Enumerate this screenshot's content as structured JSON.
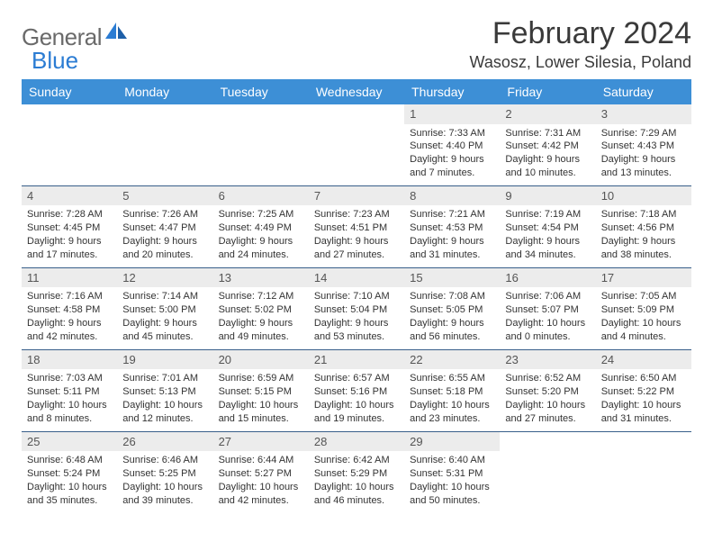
{
  "logo": {
    "text1": "General",
    "text2": "Blue"
  },
  "title": "February 2024",
  "location": "Wasosz, Lower Silesia, Poland",
  "colors": {
    "header_bg": "#3d8fd6",
    "header_text": "#ffffff",
    "row_border": "#385f8a",
    "daynum_bg": "#ececec",
    "logo_gray": "#6a6a6a",
    "logo_blue": "#2b7cd3"
  },
  "weekdays": [
    "Sunday",
    "Monday",
    "Tuesday",
    "Wednesday",
    "Thursday",
    "Friday",
    "Saturday"
  ],
  "weeks": [
    [
      null,
      null,
      null,
      null,
      {
        "n": "1",
        "sunrise": "7:33 AM",
        "sunset": "4:40 PM",
        "daylight": "9 hours and 7 minutes."
      },
      {
        "n": "2",
        "sunrise": "7:31 AM",
        "sunset": "4:42 PM",
        "daylight": "9 hours and 10 minutes."
      },
      {
        "n": "3",
        "sunrise": "7:29 AM",
        "sunset": "4:43 PM",
        "daylight": "9 hours and 13 minutes."
      }
    ],
    [
      {
        "n": "4",
        "sunrise": "7:28 AM",
        "sunset": "4:45 PM",
        "daylight": "9 hours and 17 minutes."
      },
      {
        "n": "5",
        "sunrise": "7:26 AM",
        "sunset": "4:47 PM",
        "daylight": "9 hours and 20 minutes."
      },
      {
        "n": "6",
        "sunrise": "7:25 AM",
        "sunset": "4:49 PM",
        "daylight": "9 hours and 24 minutes."
      },
      {
        "n": "7",
        "sunrise": "7:23 AM",
        "sunset": "4:51 PM",
        "daylight": "9 hours and 27 minutes."
      },
      {
        "n": "8",
        "sunrise": "7:21 AM",
        "sunset": "4:53 PM",
        "daylight": "9 hours and 31 minutes."
      },
      {
        "n": "9",
        "sunrise": "7:19 AM",
        "sunset": "4:54 PM",
        "daylight": "9 hours and 34 minutes."
      },
      {
        "n": "10",
        "sunrise": "7:18 AM",
        "sunset": "4:56 PM",
        "daylight": "9 hours and 38 minutes."
      }
    ],
    [
      {
        "n": "11",
        "sunrise": "7:16 AM",
        "sunset": "4:58 PM",
        "daylight": "9 hours and 42 minutes."
      },
      {
        "n": "12",
        "sunrise": "7:14 AM",
        "sunset": "5:00 PM",
        "daylight": "9 hours and 45 minutes."
      },
      {
        "n": "13",
        "sunrise": "7:12 AM",
        "sunset": "5:02 PM",
        "daylight": "9 hours and 49 minutes."
      },
      {
        "n": "14",
        "sunrise": "7:10 AM",
        "sunset": "5:04 PM",
        "daylight": "9 hours and 53 minutes."
      },
      {
        "n": "15",
        "sunrise": "7:08 AM",
        "sunset": "5:05 PM",
        "daylight": "9 hours and 56 minutes."
      },
      {
        "n": "16",
        "sunrise": "7:06 AM",
        "sunset": "5:07 PM",
        "daylight": "10 hours and 0 minutes."
      },
      {
        "n": "17",
        "sunrise": "7:05 AM",
        "sunset": "5:09 PM",
        "daylight": "10 hours and 4 minutes."
      }
    ],
    [
      {
        "n": "18",
        "sunrise": "7:03 AM",
        "sunset": "5:11 PM",
        "daylight": "10 hours and 8 minutes."
      },
      {
        "n": "19",
        "sunrise": "7:01 AM",
        "sunset": "5:13 PM",
        "daylight": "10 hours and 12 minutes."
      },
      {
        "n": "20",
        "sunrise": "6:59 AM",
        "sunset": "5:15 PM",
        "daylight": "10 hours and 15 minutes."
      },
      {
        "n": "21",
        "sunrise": "6:57 AM",
        "sunset": "5:16 PM",
        "daylight": "10 hours and 19 minutes."
      },
      {
        "n": "22",
        "sunrise": "6:55 AM",
        "sunset": "5:18 PM",
        "daylight": "10 hours and 23 minutes."
      },
      {
        "n": "23",
        "sunrise": "6:52 AM",
        "sunset": "5:20 PM",
        "daylight": "10 hours and 27 minutes."
      },
      {
        "n": "24",
        "sunrise": "6:50 AM",
        "sunset": "5:22 PM",
        "daylight": "10 hours and 31 minutes."
      }
    ],
    [
      {
        "n": "25",
        "sunrise": "6:48 AM",
        "sunset": "5:24 PM",
        "daylight": "10 hours and 35 minutes."
      },
      {
        "n": "26",
        "sunrise": "6:46 AM",
        "sunset": "5:25 PM",
        "daylight": "10 hours and 39 minutes."
      },
      {
        "n": "27",
        "sunrise": "6:44 AM",
        "sunset": "5:27 PM",
        "daylight": "10 hours and 42 minutes."
      },
      {
        "n": "28",
        "sunrise": "6:42 AM",
        "sunset": "5:29 PM",
        "daylight": "10 hours and 46 minutes."
      },
      {
        "n": "29",
        "sunrise": "6:40 AM",
        "sunset": "5:31 PM",
        "daylight": "10 hours and 50 minutes."
      },
      null,
      null
    ]
  ],
  "labels": {
    "sunrise": "Sunrise: ",
    "sunset": "Sunset: ",
    "daylight": "Daylight: "
  }
}
